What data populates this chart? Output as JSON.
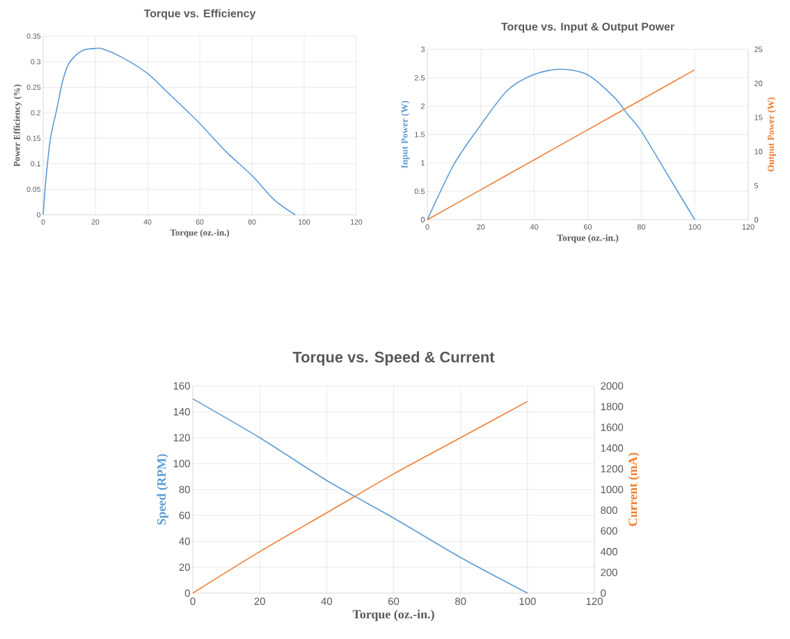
{
  "chart_data": [
    {
      "type": "line",
      "title": "Torque vs. Efficiency",
      "xlabel": "Torque (oz.-in.)",
      "ylabel": "Power Efficiency (%)",
      "xlim": [
        0,
        120
      ],
      "ylim": [
        0,
        0.35
      ],
      "xticks": [
        0,
        20,
        40,
        60,
        80,
        100,
        120
      ],
      "yticks": [
        0,
        0.05,
        0.1,
        0.15,
        0.2,
        0.25,
        0.3,
        0.35
      ],
      "grid": true,
      "x": [
        0,
        1.1,
        2.8,
        5.1,
        7.3,
        9.5,
        12.2,
        15.7,
        20,
        22.8,
        30,
        40,
        46,
        55,
        60,
        70,
        80,
        88.6,
        96.6
      ],
      "series": [
        {
          "color": "#5b9bd5",
          "values": [
            0,
            0.072,
            0.15,
            0.204,
            0.259,
            0.293,
            0.311,
            0.323,
            0.326,
            0.325,
            0.309,
            0.277,
            0.248,
            0.204,
            0.179,
            0.124,
            0.077,
            0.029,
            0
          ]
        }
      ]
    },
    {
      "type": "line",
      "title": "Torque vs. Input & Output Power",
      "xlabel": "Torque (oz.-in.)",
      "ylabel": "Input Power (W)",
      "y2label": "Output Power (W)",
      "xlim": [
        0,
        120
      ],
      "ylim": [
        0,
        3
      ],
      "y2lim": [
        0,
        25
      ],
      "xticks": [
        0,
        20,
        40,
        60,
        80,
        100,
        120
      ],
      "yticks": [
        0,
        0.5,
        1,
        1.5,
        2,
        2.5,
        3
      ],
      "y2ticks": [
        0,
        5,
        10,
        15,
        20,
        25
      ],
      "grid": true,
      "series": [
        {
          "color": "#5b9bd5",
          "x": [
            0,
            10,
            20,
            30,
            40,
            50,
            60,
            70,
            75,
            80,
            90,
            100
          ],
          "values": [
            0,
            0.98,
            1.67,
            2.28,
            2.56,
            2.65,
            2.55,
            2.15,
            1.85,
            1.56,
            0.78,
            0
          ]
        },
        {
          "color": "#ed7d31",
          "axis": "y2",
          "x": [
            0,
            20,
            40,
            60,
            80,
            100
          ],
          "values": [
            0,
            4.4,
            8.8,
            13.2,
            17.6,
            22
          ]
        }
      ]
    },
    {
      "type": "line",
      "title": "Torque vs. Speed & Current",
      "xlabel": "Torque (oz.-in.)",
      "ylabel": "Speed (RPM)",
      "y2label": "Current (mA)",
      "xlim": [
        0,
        120
      ],
      "ylim": [
        0,
        160
      ],
      "y2lim": [
        0,
        2000
      ],
      "xticks": [
        0,
        20,
        40,
        60,
        80,
        100,
        120
      ],
      "yticks": [
        0,
        20,
        40,
        60,
        80,
        100,
        120,
        140,
        160
      ],
      "y2ticks": [
        0,
        200,
        400,
        600,
        800,
        1000,
        1200,
        1400,
        1600,
        1800,
        2000
      ],
      "grid": true,
      "x": [
        0,
        20,
        40,
        60,
        80,
        100
      ],
      "series": [
        {
          "color": "#5b9bd5",
          "values": [
            150,
            120,
            87,
            58,
            27.5,
            0
          ]
        },
        {
          "color": "#ed7d31",
          "axis": "y2",
          "values": [
            0,
            400,
            775,
            1150,
            1500,
            1850
          ]
        }
      ]
    }
  ]
}
